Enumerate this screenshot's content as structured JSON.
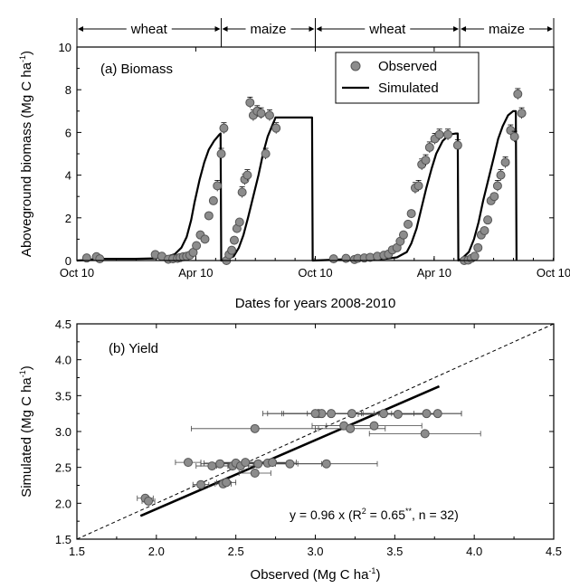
{
  "chart_data": [
    {
      "type": "line",
      "panel_label": "(a) Biomass",
      "xlabel": "Dates for years 2008-2010",
      "ylabel": "Aboveground biomass (Mg C ha",
      "ylabel_sup": "-1",
      "ylabel_tail": ")",
      "ylim": [
        0,
        10
      ],
      "yticks": [
        0,
        2,
        4,
        6,
        8,
        10
      ],
      "xticks": [
        "Oct 10",
        "Apr 10",
        "Oct 10",
        "Apr 10",
        "Oct 10"
      ],
      "xlim_days": [
        0,
        730
      ],
      "seasons": [
        {
          "label": "wheat",
          "start": 0,
          "end": 221
        },
        {
          "label": "maize",
          "start": 221,
          "end": 365
        },
        {
          "label": "wheat",
          "start": 365,
          "end": 586
        },
        {
          "label": "maize",
          "start": 586,
          "end": 730
        }
      ],
      "legend": {
        "position": "top-right",
        "observed": "Observed",
        "simulated": "Simulated"
      },
      "series": [
        {
          "name": "Simulated",
          "x": [
            0,
            15,
            30,
            55,
            90,
            120,
            140,
            150,
            160,
            168,
            175,
            180,
            188,
            195,
            202,
            210,
            218,
            220,
            221,
            230,
            240,
            248,
            255,
            262,
            270,
            278,
            285,
            292,
            300,
            303,
            304,
            340,
            359,
            360,
            361,
            380,
            410,
            440,
            470,
            490,
            505,
            512,
            520,
            527,
            535,
            543,
            550,
            560,
            570,
            580,
            583,
            584,
            590,
            600,
            608,
            615,
            622,
            630,
            638,
            645,
            652,
            660,
            668,
            672,
            673
          ],
          "y": [
            0,
            0.02,
            0.08,
            0.08,
            0.08,
            0.1,
            0.2,
            0.3,
            0.6,
            1.1,
            1.9,
            2.7,
            3.8,
            4.6,
            5.2,
            5.6,
            5.9,
            5.95,
            0,
            0.05,
            0.2,
            0.6,
            1.2,
            2.0,
            3.0,
            4.0,
            5.0,
            5.8,
            6.4,
            6.6,
            6.7,
            6.7,
            6.7,
            6.7,
            0,
            0.02,
            0.06,
            0.06,
            0.07,
            0.15,
            0.4,
            0.8,
            1.5,
            2.4,
            3.4,
            4.3,
            5.0,
            5.6,
            5.9,
            5.95,
            5.95,
            0,
            0.1,
            0.4,
            1.0,
            1.8,
            2.8,
            3.8,
            4.8,
            5.7,
            6.3,
            6.8,
            7.0,
            7.0,
            0
          ]
        },
        {
          "name": "Observed",
          "x": [
            15,
            30,
            35,
            120,
            130,
            140,
            147,
            154,
            158,
            163,
            168,
            173,
            178,
            183,
            189,
            196,
            202,
            209,
            215,
            221,
            225,
            229,
            233,
            237,
            241,
            245,
            249,
            253,
            257,
            261,
            265,
            270,
            276,
            282,
            289,
            295,
            305,
            393,
            412,
            425,
            430,
            440,
            449,
            460,
            470,
            477,
            483,
            490,
            495,
            500,
            507,
            512,
            518,
            523,
            528,
            534,
            540,
            548,
            555,
            568,
            583,
            593,
            599,
            604,
            609,
            614,
            619,
            624,
            629,
            634,
            639,
            644,
            649,
            656,
            664,
            670,
            675,
            681
          ],
          "y": [
            0.12,
            0.18,
            0.08,
            0.28,
            0.2,
            0.06,
            0.08,
            0.1,
            0.14,
            0.18,
            0.2,
            0.25,
            0.38,
            0.7,
            1.2,
            1.0,
            2.1,
            2.8,
            3.5,
            5.0,
            6.2,
            0.0,
            0.28,
            0.48,
            0.95,
            1.5,
            1.8,
            3.2,
            3.8,
            4.0,
            7.4,
            6.8,
            7.0,
            6.9,
            5.0,
            6.8,
            6.2,
            0.08,
            0.1,
            0.05,
            0.1,
            0.12,
            0.15,
            0.2,
            0.25,
            0.3,
            0.5,
            0.6,
            0.9,
            1.2,
            1.7,
            2.2,
            3.4,
            3.5,
            4.5,
            4.7,
            5.3,
            5.7,
            5.9,
            5.9,
            5.4,
            0.0,
            0.02,
            0.1,
            0.2,
            0.6,
            1.2,
            1.4,
            1.9,
            2.8,
            3.0,
            3.5,
            4.0,
            4.6,
            6.1,
            5.8,
            7.8,
            6.9
          ]
        }
      ]
    },
    {
      "type": "scatter",
      "panel_label": "(b) Yield",
      "xlabel": "Observed (Mg C ha",
      "xlabel_sup": "-1",
      "xlabel_tail": ")",
      "ylabel": "Simulated (Mg C ha",
      "ylabel_sup": "-1",
      "ylabel_tail": ")",
      "xlim": [
        1.5,
        4.5
      ],
      "ylim": [
        1.5,
        4.5
      ],
      "xticks": [
        1.5,
        2.0,
        2.5,
        3.0,
        3.5,
        4.0,
        4.5
      ],
      "yticks": [
        1.5,
        2.0,
        2.5,
        3.0,
        3.5,
        4.0,
        4.5
      ],
      "fit": {
        "slope": 0.96,
        "x": [
          1.9,
          3.78
        ]
      },
      "one_to_one": {
        "style": "dashed"
      },
      "equation": {
        "prefix": "y = 0.96 x  (R",
        "sup1": "2",
        "mid": " = 0.65",
        "sup2": "**",
        "suffix": ", n = 32)"
      },
      "points": [
        {
          "x": 1.93,
          "y": 2.07,
          "xerr": 0.05
        },
        {
          "x": 1.95,
          "y": 2.03,
          "xerr": 0.04
        },
        {
          "x": 2.2,
          "y": 2.57,
          "xerr": 0.08
        },
        {
          "x": 2.28,
          "y": 2.26,
          "xerr": 0.05
        },
        {
          "x": 2.35,
          "y": 2.52,
          "xerr": 0.1
        },
        {
          "x": 2.4,
          "y": 2.55,
          "xerr": 0.12
        },
        {
          "x": 2.42,
          "y": 2.27,
          "xerr": 0.05
        },
        {
          "x": 2.44,
          "y": 2.29,
          "xerr": 0.06
        },
        {
          "x": 2.48,
          "y": 2.52,
          "xerr": 0.1
        },
        {
          "x": 2.5,
          "y": 2.56,
          "xerr": 0.2
        },
        {
          "x": 2.53,
          "y": 2.52,
          "xerr": 0.08
        },
        {
          "x": 2.56,
          "y": 2.57,
          "xerr": 0.15
        },
        {
          "x": 2.62,
          "y": 2.42,
          "xerr": 0.1
        },
        {
          "x": 2.64,
          "y": 2.55,
          "xerr": 0.25
        },
        {
          "x": 2.7,
          "y": 2.56,
          "xerr": 0.12
        },
        {
          "x": 2.73,
          "y": 2.57,
          "xerr": 0.15
        },
        {
          "x": 2.84,
          "y": 2.55,
          "xerr": 0.2
        },
        {
          "x": 3.07,
          "y": 2.55,
          "xerr": 0.32
        },
        {
          "x": 2.62,
          "y": 3.04,
          "xerr": 0.4
        },
        {
          "x": 3.02,
          "y": 3.25,
          "xerr": 0.35
        },
        {
          "x": 3.04,
          "y": 3.25,
          "xerr": 0.25
        },
        {
          "x": 3.1,
          "y": 3.25,
          "xerr": 0.3
        },
        {
          "x": 3.18,
          "y": 3.08,
          "xerr": 0.2
        },
        {
          "x": 3.22,
          "y": 3.04,
          "xerr": 0.22
        },
        {
          "x": 3.23,
          "y": 3.25,
          "xerr": 0.28
        },
        {
          "x": 3.37,
          "y": 3.08,
          "xerr": 0.3
        },
        {
          "x": 3.43,
          "y": 3.25,
          "xerr": 0.35
        },
        {
          "x": 3.52,
          "y": 3.24,
          "xerr": 0.25
        },
        {
          "x": 3.7,
          "y": 3.25,
          "xerr": 0.22
        },
        {
          "x": 3.69,
          "y": 2.97,
          "xerr": 0.35
        },
        {
          "x": 3.77,
          "y": 3.25,
          "xerr": 0.15
        },
        {
          "x": 3.0,
          "y": 3.25,
          "xerr": 0.3
        }
      ]
    }
  ]
}
